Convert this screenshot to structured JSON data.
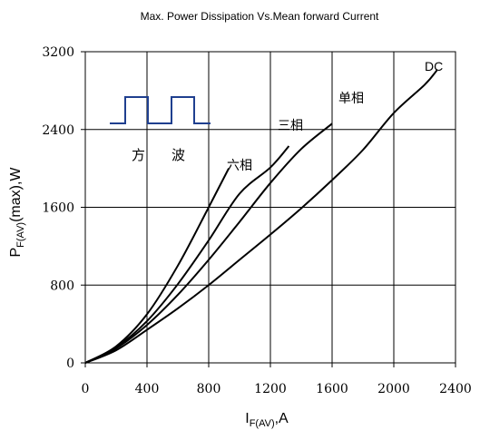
{
  "chart_data": {
    "type": "line",
    "title": "Max. Power Dissipation Vs.Mean forward Current",
    "xlabel": {
      "main": "I",
      "sub": "F(AV)",
      "tail": ",A"
    },
    "ylabel": {
      "main": "P",
      "sub": "F(AV)",
      "tail": "(max),W"
    },
    "xlim": [
      0,
      2400
    ],
    "ylim": [
      0,
      3200
    ],
    "x_ticks": [
      0,
      400,
      800,
      1200,
      1600,
      2000,
      2400
    ],
    "y_ticks": [
      0,
      800,
      1600,
      2400,
      3200
    ],
    "grid": true,
    "legend": "none",
    "series": [
      {
        "name": "六相",
        "points": [
          [
            0,
            0
          ],
          [
            200,
            170
          ],
          [
            400,
            500
          ],
          [
            600,
            1000
          ],
          [
            800,
            1600
          ],
          [
            930,
            2000
          ]
        ]
      },
      {
        "name": "三相",
        "points": [
          [
            0,
            0
          ],
          [
            200,
            160
          ],
          [
            400,
            430
          ],
          [
            600,
            810
          ],
          [
            800,
            1260
          ],
          [
            1000,
            1740
          ],
          [
            1200,
            2010
          ],
          [
            1320,
            2230
          ]
        ]
      },
      {
        "name": "单相",
        "points": [
          [
            0,
            0
          ],
          [
            200,
            150
          ],
          [
            400,
            390
          ],
          [
            600,
            700
          ],
          [
            800,
            1060
          ],
          [
            1000,
            1450
          ],
          [
            1200,
            1850
          ],
          [
            1400,
            2200
          ],
          [
            1600,
            2460
          ]
        ]
      },
      {
        "name": "DC",
        "points": [
          [
            0,
            0
          ],
          [
            200,
            130
          ],
          [
            400,
            340
          ],
          [
            600,
            560
          ],
          [
            800,
            800
          ],
          [
            1000,
            1060
          ],
          [
            1200,
            1320
          ],
          [
            1400,
            1590
          ],
          [
            1600,
            1880
          ],
          [
            1800,
            2190
          ],
          [
            2000,
            2570
          ],
          [
            2200,
            2860
          ],
          [
            2280,
            3010
          ]
        ]
      }
    ],
    "inset": {
      "label_left": "方",
      "label_right": "波"
    },
    "colors": {
      "line": "#000000",
      "grid": "#000000",
      "background": "#ffffff"
    }
  }
}
